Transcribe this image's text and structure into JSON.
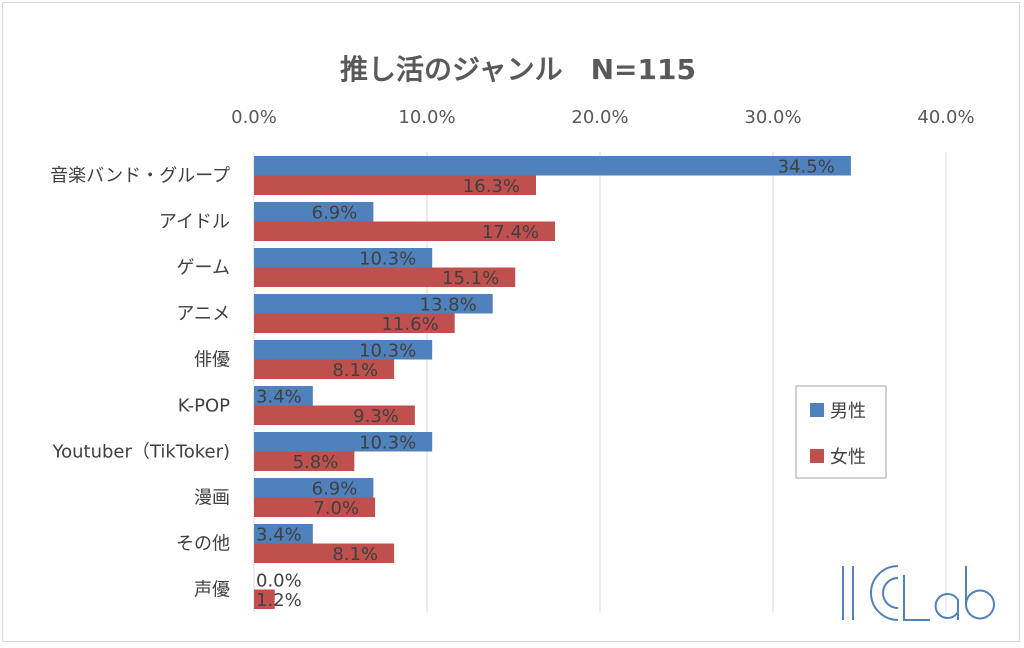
{
  "chart_data": {
    "type": "bar",
    "orientation": "horizontal",
    "title": "推し活のジャンル　N=115",
    "xlabel": "",
    "ylabel": "",
    "xlim": [
      0,
      40
    ],
    "x_ticks": [
      "0.0%",
      "10.0%",
      "20.0%",
      "30.0%",
      "40.0%"
    ],
    "x_tick_values": [
      0,
      10,
      20,
      30,
      40
    ],
    "grid": true,
    "legend_position": "right",
    "categories": [
      "音楽バンド・グループ",
      "アイドル",
      "ゲーム",
      "アニメ",
      "俳優",
      "K-POP",
      "Youtuber（TikToker)",
      "漫画",
      "その他",
      "声優"
    ],
    "series": [
      {
        "name": "男性",
        "color": "#4f81bd",
        "values": [
          34.5,
          6.9,
          10.3,
          13.8,
          10.3,
          3.4,
          10.3,
          6.9,
          3.4,
          0.0
        ],
        "labels": [
          "34.5%",
          "6.9%",
          "10.3%",
          "13.8%",
          "10.3%",
          "3.4%",
          "10.3%",
          "6.9%",
          "3.4%",
          "0.0%"
        ]
      },
      {
        "name": "女性",
        "color": "#c0504d",
        "values": [
          16.3,
          17.4,
          15.1,
          11.6,
          8.1,
          9.3,
          5.8,
          7.0,
          8.1,
          1.2
        ],
        "labels": [
          "16.3%",
          "17.4%",
          "15.1%",
          "11.6%",
          "8.1%",
          "9.3%",
          "5.8%",
          "7.0%",
          "8.1%",
          "1.2%"
        ]
      }
    ]
  },
  "watermark": {
    "text": "ICLab",
    "color": "#4f81bd"
  }
}
